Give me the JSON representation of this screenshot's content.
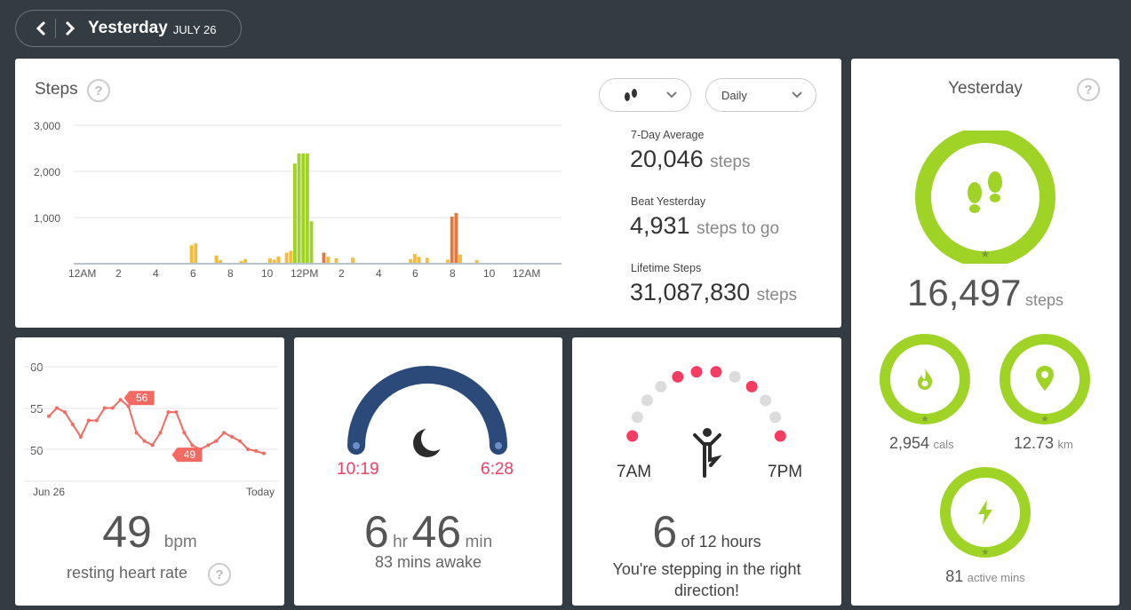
{
  "nav": {
    "day": "Yesterday",
    "date": "JULY 26"
  },
  "steps_card": {
    "title": "Steps",
    "help": "?",
    "range_select": "Daily",
    "y_ticks": [
      "3,000",
      "2,000",
      "1,000"
    ],
    "x_ticks": [
      "12AM",
      "2",
      "4",
      "6",
      "8",
      "10",
      "12PM",
      "2",
      "4",
      "6",
      "8",
      "10",
      "12AM"
    ],
    "stats": [
      {
        "label": "7-Day Average",
        "value": "20,046",
        "unit": "steps"
      },
      {
        "label": "Beat Yesterday",
        "value": "4,931",
        "unit": "steps to go"
      },
      {
        "label": "Lifetime Steps",
        "value": "31,087,830",
        "unit": "steps"
      }
    ]
  },
  "chart_data": {
    "type": "bar",
    "ylim": [
      0,
      3000
    ],
    "values": [
      0,
      0,
      0,
      0,
      0,
      0,
      0,
      0,
      0,
      0,
      0,
      0,
      0,
      0,
      0,
      0,
      0,
      0,
      0,
      0,
      0,
      0,
      0,
      0,
      0,
      0,
      0,
      0,
      380,
      420,
      0,
      0,
      0,
      0,
      160,
      60,
      0,
      0,
      0,
      0,
      40,
      80,
      0,
      0,
      0,
      0,
      0,
      100,
      70,
      140,
      0,
      220,
      260,
      2150,
      2370,
      2370,
      2370,
      900,
      0,
      0,
      220,
      130,
      0,
      100,
      0,
      0,
      0,
      110,
      0,
      0,
      0,
      0,
      0,
      0,
      0,
      0,
      0,
      0,
      0,
      0,
      0,
      80,
      190,
      130,
      0,
      110,
      0,
      0,
      0,
      0,
      70,
      1000,
      1080,
      180,
      0,
      0,
      0,
      60,
      0,
      0,
      0,
      0,
      0,
      0,
      0,
      0,
      0,
      0,
      0,
      0,
      0,
      0,
      0,
      0,
      0,
      0,
      0,
      0
    ]
  },
  "heart": {
    "y_ticks": [
      "60",
      "55",
      "50"
    ],
    "x_start": "Jun 26",
    "x_end": "Today",
    "max_label": "56",
    "min_label": "49",
    "value": "49",
    "unit": "bpm",
    "caption": "resting heart rate",
    "help": "?",
    "series": [
      54,
      55,
      54.5,
      53,
      51.5,
      53.5,
      53.5,
      55,
      55,
      56,
      55.2,
      52,
      51,
      50.5,
      52,
      54.5,
      54.5,
      52,
      50.5,
      50,
      50.5,
      51,
      52,
      51.5,
      51,
      50,
      49.8,
      49.5
    ]
  },
  "sleep": {
    "start": "10:19",
    "end": "6:28",
    "hours": "6",
    "hr_unit": "hr",
    "minutes": "46",
    "min_unit": "min",
    "awake": "83 mins awake"
  },
  "hourly": {
    "start": "7AM",
    "end": "7PM",
    "count": "6",
    "of_text": "of 12 hours",
    "message": "You're stepping in the right direction!",
    "dots": [
      1,
      0,
      0,
      0,
      1,
      1,
      1,
      0,
      1,
      0,
      0,
      1
    ]
  },
  "summary": {
    "title": "Yesterday",
    "help": "?",
    "steps_value": "16,497",
    "steps_unit": "steps",
    "cals_value": "2,954",
    "cals_unit": "cals",
    "km_value": "12.73",
    "km_unit": "km",
    "active_value": "81",
    "active_unit": "active mins"
  },
  "colors": {
    "background": "#323c42",
    "green": "#9fd326",
    "yellow": "#f7bb3b",
    "orange": "#e8763f",
    "pink": "#f53d64",
    "navy": "#2b4a7a",
    "heart_line": "#f36a62"
  }
}
